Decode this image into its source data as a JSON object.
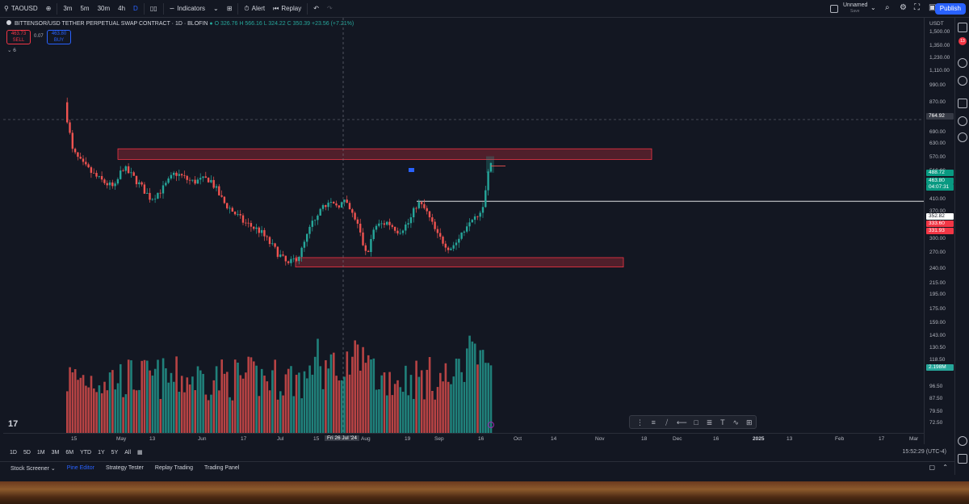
{
  "toolbar": {
    "symbol": "TAOUSD",
    "intervals": [
      "3m",
      "5m",
      "30m",
      "4h",
      "D"
    ],
    "active_interval": "D",
    "indicators_label": "Indicators",
    "alert_label": "Alert",
    "replay_label": "Replay",
    "layout_name": "Unnamed",
    "layout_save": "Save",
    "publish_label": "Publish",
    "notifications_badge": "13"
  },
  "legend": {
    "title": "BITTENSOR/USD TETHER PERPETUAL SWAP CONTRACT · 1D · BLOFIN",
    "open": "O 326.76",
    "high": "H 566.16",
    "low": "L 324.22",
    "close": "C 350.39",
    "change": "+23.56 (+7.21%)",
    "sell_price": "463.73",
    "sell_label": "SELL",
    "spread": "0.07",
    "buy_price": "463.80",
    "buy_label": "BUY",
    "indicator_count": "6"
  },
  "price_axis": {
    "currency": "USDT",
    "labels": [
      "1,500.00",
      "1,350.00",
      "1,230.00",
      "1,110.00",
      "990.00",
      "870.00",
      "690.00",
      "630.00",
      "570.00",
      "510.00",
      "410.00",
      "370.00",
      "300.00",
      "270.00",
      "240.00",
      "215.00",
      "195.00",
      "175.00",
      "159.00",
      "143.00",
      "130.50",
      "118.50",
      "96.50",
      "87.50",
      "79.50",
      "72.50"
    ],
    "badges": [
      {
        "text": "764.92",
        "color": "#363a45"
      },
      {
        "text": "488.72",
        "color": "#089981"
      },
      {
        "text": "463.80",
        "color": "#089981"
      },
      {
        "text": "04:07:31",
        "color": "#089981"
      },
      {
        "text": "352.82",
        "color": "#ffffff"
      },
      {
        "text": "333.60",
        "color": "#f23645"
      },
      {
        "text": "331.93",
        "color": "#f23645"
      },
      {
        "text": "2.198M",
        "color": "#26a69a"
      }
    ]
  },
  "time_axis": {
    "labels": [
      "15",
      "May",
      "13",
      "Jun",
      "17",
      "Jul",
      "15",
      "Fri 26 Jul '24",
      "Aug",
      "19",
      "Sep",
      "16",
      "Oct",
      "14",
      "Nov",
      "18",
      "Dec",
      "16",
      "2025",
      "13",
      "Feb",
      "17",
      "Mar"
    ]
  },
  "range_bar": {
    "ranges": [
      "1D",
      "5D",
      "1M",
      "3M",
      "6M",
      "YTD",
      "1Y",
      "5Y",
      "All"
    ],
    "clock": "15:52:29 (UTC-4)"
  },
  "bottom_tabs": [
    "Stock Screener",
    "Pine Editor",
    "Strategy Tester",
    "Replay Trading",
    "Trading Panel"
  ],
  "colors": {
    "up": "#26a69a",
    "down": "#ef5350",
    "zone": "#f2364540",
    "zone_border": "#f23645",
    "accent": "#2962ff"
  },
  "chart_data": {
    "type": "candlestick",
    "title": "",
    "y_scale": "log",
    "ylim": [
      72.5,
      1500
    ],
    "crosshair_x_label": "Fri 26 Jul '24",
    "crosshair_y_label": "764.92",
    "resistance_zone": [
      488,
      530
    ],
    "support_zone": [
      212,
      228
    ],
    "horizontal_line": 352.82
  }
}
